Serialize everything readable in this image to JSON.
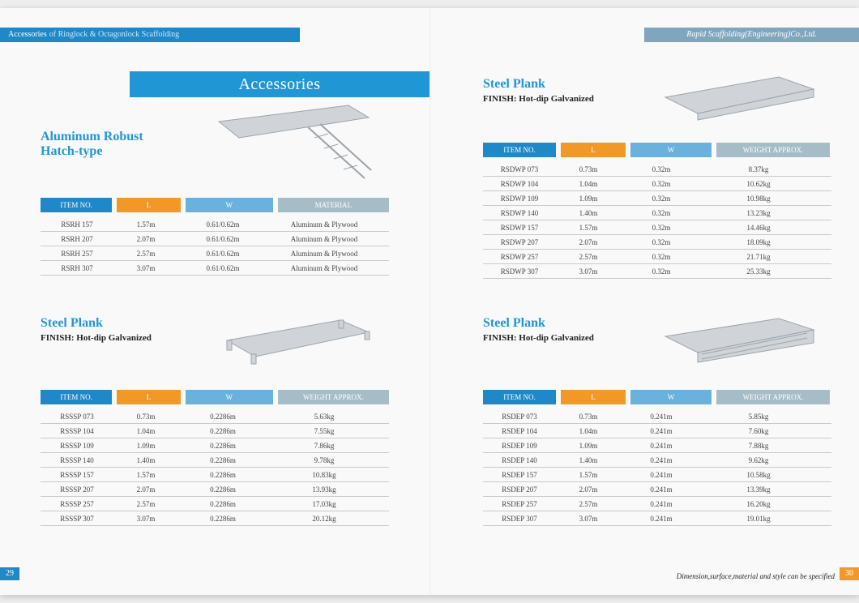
{
  "header_left": {
    "prefix": "Accessories",
    "rest": "of  Ringlock & Octagonlock Scaffolding"
  },
  "header_right": "Rapid Scaffolding(Engineering)Co.,Ltd.",
  "banner": "Accessories",
  "footer_note": "Dimension,surface,material and style can be specified",
  "page_left_num": "29",
  "page_right_num": "30",
  "colors": {
    "blue": "#1e88c9",
    "orange": "#f29827",
    "wblue": "#6bb1dd",
    "gray": "#a6bdc8"
  },
  "section1": {
    "title1": "Aluminum Robust",
    "title2": "Hatch-type",
    "headers": [
      "ITEM NO.",
      "L",
      "W",
      "MATERIAL"
    ],
    "head_styles": [
      "blue",
      "orange",
      "wblue",
      "gray"
    ],
    "rows": [
      [
        "RSRH 157",
        "1.57m",
        "0.61/0.62m",
        "Aluminum & Plywood"
      ],
      [
        "RSRH 207",
        "2.07m",
        "0.61/0.62m",
        "Aluminum & Plywood"
      ],
      [
        "RSRH 257",
        "2.57m",
        "0.61/0.62m",
        "Aluminum & Plywood"
      ],
      [
        "RSRH 307",
        "3.07m",
        "0.61/0.62m",
        "Aluminum & Plywood"
      ]
    ]
  },
  "section2": {
    "title": "Steel Plank",
    "sub": "FINISH:  Hot-dip Galvanized",
    "headers": [
      "ITEM NO.",
      "L",
      "W",
      "WEIGHT APPROX."
    ],
    "head_styles": [
      "blue",
      "orange",
      "wblue",
      "gray"
    ],
    "rows": [
      [
        "RSSSP 073",
        "0.73m",
        "0.2286m",
        "5.63kg"
      ],
      [
        "RSSSP 104",
        "1.04m",
        "0.2286m",
        "7.55kg"
      ],
      [
        "RSSSP 109",
        "1.09m",
        "0.2286m",
        "7.86kg"
      ],
      [
        "RSSSP 140",
        "1.40m",
        "0.2286m",
        "9.78kg"
      ],
      [
        "RSSSP 157",
        "1.57m",
        "0.2286m",
        "10.83kg"
      ],
      [
        "RSSSP 207",
        "2.07m",
        "0.2286m",
        "13.93kg"
      ],
      [
        "RSSSP 257",
        "2.57m",
        "0.2286m",
        "17.03kg"
      ],
      [
        "RSSSP 307",
        "3.07m",
        "0.2286m",
        "20.12kg"
      ]
    ]
  },
  "section3": {
    "title": "Steel Plank",
    "sub": "FINISH:  Hot-dip Galvanized",
    "headers": [
      "ITEM NO.",
      "L",
      "W",
      "WEIGHT APPROX."
    ],
    "head_styles": [
      "blue",
      "orange",
      "wblue",
      "gray"
    ],
    "rows": [
      [
        "RSDWP 073",
        "0.73m",
        "0.32m",
        "8.37kg"
      ],
      [
        "RSDWP 104",
        "1.04m",
        "0.32m",
        "10.62kg"
      ],
      [
        "RSDWP 109",
        "1.09m",
        "0.32m",
        "10.98kg"
      ],
      [
        "RSDWP 140",
        "1.40m",
        "0.32m",
        "13.23kg"
      ],
      [
        "RSDWP 157",
        "1.57m",
        "0.32m",
        "14.46kg"
      ],
      [
        "RSDWP 207",
        "2.07m",
        "0.32m",
        "18.09kg"
      ],
      [
        "RSDWP 257",
        "2.57m",
        "0.32m",
        "21.71kg"
      ],
      [
        "RSDWP 307",
        "3.07m",
        "0.32m",
        "25.33kg"
      ]
    ]
  },
  "section4": {
    "title": "Steel Plank",
    "sub": "FINISH:  Hot-dip Galvanized",
    "headers": [
      "ITEM NO.",
      "L",
      "W",
      "WEIGHT APPROX."
    ],
    "head_styles": [
      "blue",
      "orange",
      "wblue",
      "gray"
    ],
    "rows": [
      [
        "RSDEP 073",
        "0.73m",
        "0.241m",
        "5.85kg"
      ],
      [
        "RSDEP 104",
        "1.04m",
        "0.241m",
        "7.60kg"
      ],
      [
        "RSDEP 109",
        "1.09m",
        "0.241m",
        "7.88kg"
      ],
      [
        "RSDEP 140",
        "1.40m",
        "0.241m",
        "9.62kg"
      ],
      [
        "RSDEP 157",
        "1.57m",
        "0.241m",
        "10.58kg"
      ],
      [
        "RSDEP 207",
        "2.07m",
        "0.241m",
        "13.39kg"
      ],
      [
        "RSDEP 257",
        "2.57m",
        "0.241m",
        "16.20kg"
      ],
      [
        "RSDEP 307",
        "3.07m",
        "0.241m",
        "19.01kg"
      ]
    ]
  }
}
